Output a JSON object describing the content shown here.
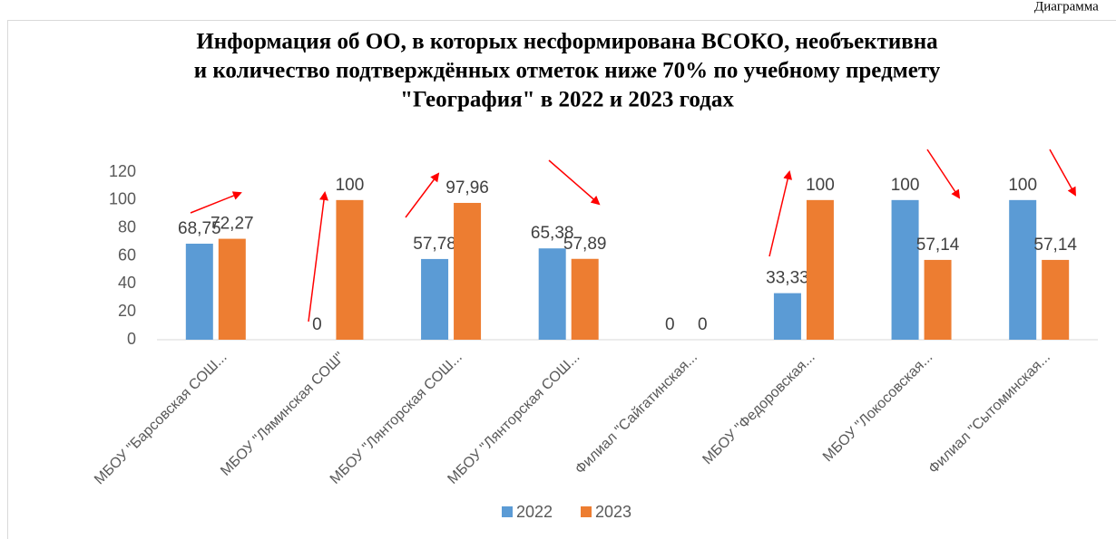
{
  "chart_data": {
    "type": "bar",
    "corner_label": "Диаграмма",
    "title": [
      "Информация об ОО, в которых несформирована ВСОКО, необъективна",
      "и количество подтверждённых отметок ниже 70% по учебному предмету",
      "\"География\" в 2022 и 2023 годах"
    ],
    "categories": [
      "МБОУ \"Барсовская СОШ...",
      "МБОУ \"Ляминская СОШ\"",
      "МБОУ \"Лянторская СОШ...",
      "МБОУ \"Лянторская СОШ...",
      "Филиал \"Сайгатинская...",
      "МБОУ \"Федоровская...",
      "МБОУ \"Локосовская...",
      "Филиал \"Сытоминская..."
    ],
    "series": [
      {
        "name": "2022",
        "color": "#5b9bd5",
        "values": [
          68.75,
          0,
          57.78,
          65.38,
          0,
          33.33,
          100,
          100
        ],
        "value_labels": [
          "68,75",
          "0",
          "57,78",
          "65,38",
          "0",
          "33,33",
          "100",
          "100"
        ]
      },
      {
        "name": "2023",
        "color": "#ed7d31",
        "values": [
          72.27,
          100,
          97.96,
          57.89,
          0,
          100,
          57.14,
          57.14
        ],
        "value_labels": [
          "72,27",
          "100",
          "97,96",
          "57,89",
          "0",
          "100",
          "57,14",
          "57,14"
        ]
      }
    ],
    "ylim": [
      0,
      120
    ],
    "yticks": [
      0,
      20,
      40,
      60,
      80,
      100,
      120
    ],
    "grid": false,
    "legend": "bottom"
  }
}
